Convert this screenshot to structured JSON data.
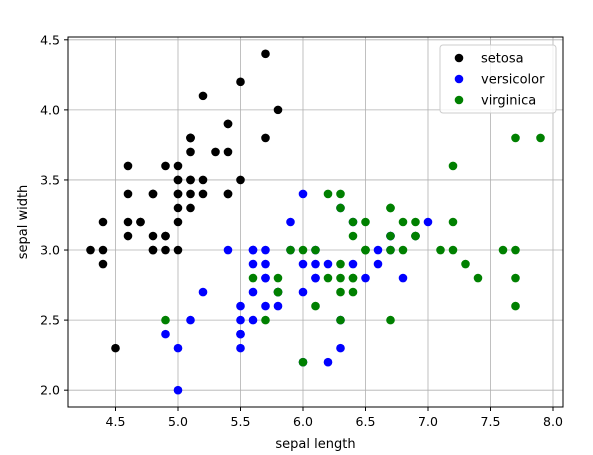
{
  "chart_data": {
    "type": "scatter",
    "title": "",
    "xlabel": "sepal length",
    "ylabel": "sepal width",
    "xlim": [
      4.12,
      8.08
    ],
    "ylim": [
      1.88,
      4.52
    ],
    "xticks": [
      4.5,
      5.0,
      5.5,
      6.0,
      6.5,
      7.0,
      7.5,
      8.0
    ],
    "xtick_labels": [
      "4.5",
      "5.0",
      "5.5",
      "6.0",
      "6.5",
      "7.0",
      "7.5",
      "8.0"
    ],
    "yticks": [
      2.0,
      2.5,
      3.0,
      3.5,
      4.0,
      4.5
    ],
    "ytick_labels": [
      "2.0",
      "2.5",
      "3.0",
      "3.5",
      "4.0",
      "4.5"
    ],
    "grid": true,
    "legend_position": "top-right",
    "series": [
      {
        "name": "setosa",
        "color": "#000000",
        "points": [
          [
            5.1,
            3.5
          ],
          [
            4.9,
            3.0
          ],
          [
            4.7,
            3.2
          ],
          [
            4.6,
            3.1
          ],
          [
            5.0,
            3.6
          ],
          [
            5.4,
            3.9
          ],
          [
            4.6,
            3.4
          ],
          [
            5.0,
            3.4
          ],
          [
            4.4,
            2.9
          ],
          [
            4.9,
            3.1
          ],
          [
            5.4,
            3.7
          ],
          [
            4.8,
            3.4
          ],
          [
            4.8,
            3.0
          ],
          [
            4.3,
            3.0
          ],
          [
            5.8,
            4.0
          ],
          [
            5.7,
            4.4
          ],
          [
            5.4,
            3.9
          ],
          [
            5.1,
            3.5
          ],
          [
            5.7,
            3.8
          ],
          [
            5.1,
            3.8
          ],
          [
            5.4,
            3.4
          ],
          [
            5.1,
            3.7
          ],
          [
            4.6,
            3.6
          ],
          [
            5.1,
            3.3
          ],
          [
            4.8,
            3.4
          ],
          [
            5.0,
            3.0
          ],
          [
            5.0,
            3.4
          ],
          [
            5.2,
            3.5
          ],
          [
            5.2,
            3.4
          ],
          [
            4.7,
            3.2
          ],
          [
            4.8,
            3.1
          ],
          [
            5.4,
            3.4
          ],
          [
            5.2,
            4.1
          ],
          [
            5.5,
            4.2
          ],
          [
            4.9,
            3.1
          ],
          [
            5.0,
            3.2
          ],
          [
            5.5,
            3.5
          ],
          [
            4.9,
            3.6
          ],
          [
            4.4,
            3.0
          ],
          [
            5.1,
            3.4
          ],
          [
            5.0,
            3.5
          ],
          [
            4.5,
            2.3
          ],
          [
            4.4,
            3.2
          ],
          [
            5.0,
            3.5
          ],
          [
            5.1,
            3.8
          ],
          [
            4.8,
            3.0
          ],
          [
            5.1,
            3.8
          ],
          [
            4.6,
            3.2
          ],
          [
            5.3,
            3.7
          ],
          [
            5.0,
            3.3
          ]
        ]
      },
      {
        "name": "versicolor",
        "color": "#0000ff",
        "points": [
          [
            7.0,
            3.2
          ],
          [
            6.4,
            3.2
          ],
          [
            6.9,
            3.1
          ],
          [
            5.5,
            2.3
          ],
          [
            6.5,
            2.8
          ],
          [
            5.7,
            2.8
          ],
          [
            6.3,
            3.3
          ],
          [
            4.9,
            2.4
          ],
          [
            6.6,
            2.9
          ],
          [
            5.2,
            2.7
          ],
          [
            5.0,
            2.0
          ],
          [
            5.9,
            3.0
          ],
          [
            6.0,
            2.2
          ],
          [
            6.1,
            2.9
          ],
          [
            5.6,
            2.9
          ],
          [
            6.7,
            3.1
          ],
          [
            5.6,
            3.0
          ],
          [
            5.8,
            2.7
          ],
          [
            6.2,
            2.2
          ],
          [
            5.6,
            2.5
          ],
          [
            5.9,
            3.2
          ],
          [
            6.1,
            2.8
          ],
          [
            6.3,
            2.5
          ],
          [
            6.1,
            2.8
          ],
          [
            6.4,
            2.9
          ],
          [
            6.6,
            3.0
          ],
          [
            6.8,
            2.8
          ],
          [
            6.7,
            3.0
          ],
          [
            6.0,
            2.9
          ],
          [
            5.7,
            2.6
          ],
          [
            5.5,
            2.4
          ],
          [
            5.5,
            2.4
          ],
          [
            5.8,
            2.7
          ],
          [
            6.0,
            2.7
          ],
          [
            5.4,
            3.0
          ],
          [
            6.0,
            3.4
          ],
          [
            6.7,
            3.1
          ],
          [
            6.3,
            2.3
          ],
          [
            5.6,
            3.0
          ],
          [
            5.5,
            2.5
          ],
          [
            5.5,
            2.6
          ],
          [
            6.1,
            3.0
          ],
          [
            5.8,
            2.6
          ],
          [
            5.0,
            2.3
          ],
          [
            5.6,
            2.7
          ],
          [
            5.7,
            3.0
          ],
          [
            5.7,
            2.9
          ],
          [
            6.2,
            2.9
          ],
          [
            5.1,
            2.5
          ],
          [
            5.7,
            2.8
          ]
        ]
      },
      {
        "name": "virginica",
        "color": "#008000",
        "points": [
          [
            6.3,
            3.3
          ],
          [
            5.8,
            2.7
          ],
          [
            7.1,
            3.0
          ],
          [
            6.3,
            2.9
          ],
          [
            6.5,
            3.0
          ],
          [
            7.6,
            3.0
          ],
          [
            4.9,
            2.5
          ],
          [
            7.3,
            2.9
          ],
          [
            6.7,
            2.5
          ],
          [
            7.2,
            3.6
          ],
          [
            6.5,
            3.2
          ],
          [
            6.4,
            2.7
          ],
          [
            6.8,
            3.0
          ],
          [
            5.7,
            2.5
          ],
          [
            5.8,
            2.8
          ],
          [
            6.4,
            3.2
          ],
          [
            6.5,
            3.0
          ],
          [
            7.7,
            3.8
          ],
          [
            7.7,
            2.6
          ],
          [
            6.0,
            2.2
          ],
          [
            6.9,
            3.2
          ],
          [
            5.6,
            2.8
          ],
          [
            7.7,
            2.8
          ],
          [
            6.3,
            2.7
          ],
          [
            6.7,
            3.3
          ],
          [
            7.2,
            3.2
          ],
          [
            6.2,
            2.8
          ],
          [
            6.1,
            3.0
          ],
          [
            6.4,
            2.8
          ],
          [
            7.2,
            3.0
          ],
          [
            7.4,
            2.8
          ],
          [
            7.9,
            3.8
          ],
          [
            6.4,
            2.8
          ],
          [
            6.3,
            2.8
          ],
          [
            6.1,
            2.6
          ],
          [
            7.7,
            3.0
          ],
          [
            6.3,
            3.4
          ],
          [
            6.4,
            3.1
          ],
          [
            6.0,
            3.0
          ],
          [
            6.9,
            3.1
          ],
          [
            6.7,
            3.1
          ],
          [
            6.9,
            3.1
          ],
          [
            5.8,
            2.7
          ],
          [
            6.8,
            3.2
          ],
          [
            6.7,
            3.3
          ],
          [
            6.7,
            3.0
          ],
          [
            6.3,
            2.5
          ],
          [
            6.5,
            3.0
          ],
          [
            6.2,
            3.4
          ],
          [
            5.9,
            3.0
          ]
        ]
      }
    ]
  }
}
